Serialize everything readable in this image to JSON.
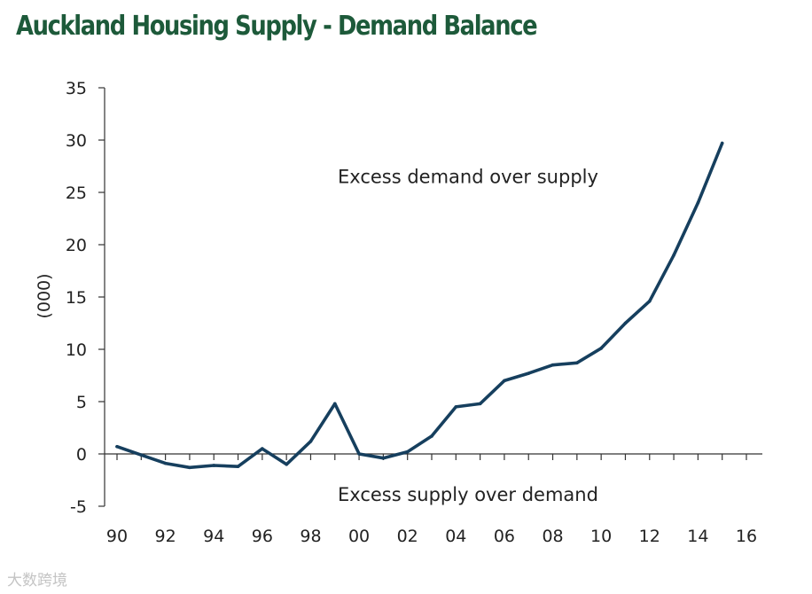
{
  "chart_data": {
    "type": "line",
    "title": "Auckland Housing Supply - Demand Balance",
    "ylabel": "(000)",
    "xlabel": "",
    "ylim": [
      -5,
      35
    ],
    "yticks": [
      35,
      30,
      25,
      20,
      15,
      10,
      5,
      0,
      -5
    ],
    "xlim": [
      1990,
      2016
    ],
    "xticks": [
      {
        "value": 1990,
        "label": "90"
      },
      {
        "value": 1992,
        "label": "92"
      },
      {
        "value": 1994,
        "label": "94"
      },
      {
        "value": 1996,
        "label": "96"
      },
      {
        "value": 1998,
        "label": "98"
      },
      {
        "value": 2000,
        "label": "00"
      },
      {
        "value": 2002,
        "label": "02"
      },
      {
        "value": 2004,
        "label": "04"
      },
      {
        "value": 2006,
        "label": "06"
      },
      {
        "value": 2008,
        "label": "08"
      },
      {
        "value": 2010,
        "label": "10"
      },
      {
        "value": 2012,
        "label": "12"
      },
      {
        "value": 2014,
        "label": "14"
      },
      {
        "value": 2016,
        "label": "16"
      }
    ],
    "series": [
      {
        "name": "Supply-demand balance",
        "color": "#163f5e",
        "x": [
          1990,
          1991,
          1992,
          1993,
          1994,
          1995,
          1996,
          1997,
          1998,
          1999,
          2000,
          2001,
          2002,
          2003,
          2004,
          2005,
          2006,
          2007,
          2008,
          2009,
          2010,
          2011,
          2012,
          2013,
          2014,
          2015
        ],
        "values": [
          0.7,
          -0.1,
          -0.9,
          -1.3,
          -1.1,
          -1.2,
          0.5,
          -1.0,
          1.2,
          4.8,
          0.0,
          -0.4,
          0.2,
          1.7,
          4.5,
          4.8,
          7.0,
          7.7,
          8.5,
          8.7,
          10.1,
          12.5,
          14.6,
          19.0,
          24.0,
          29.7
        ]
      }
    ],
    "annotations": [
      {
        "text": "Excess demand over supply",
        "x": 2004.5,
        "y": 26.5
      },
      {
        "text": "Excess supply over demand",
        "x": 2004.5,
        "y": -3.9
      }
    ],
    "grid": false,
    "legend": "none"
  },
  "watermark": "大数跨境"
}
